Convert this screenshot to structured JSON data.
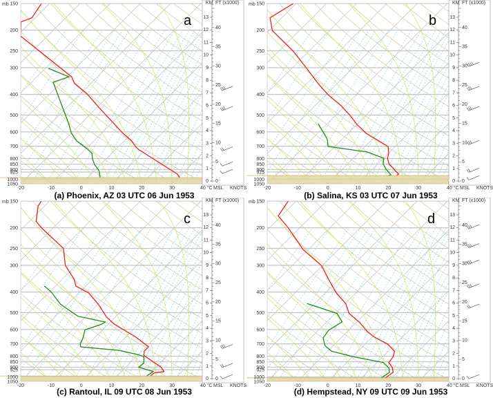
{
  "common": {
    "pressure_unit": "mb",
    "pressure_ticks": [
      150,
      200,
      250,
      300,
      400,
      500,
      600,
      700,
      800,
      850,
      900,
      925,
      1000,
      1050
    ],
    "temperature_ticks": [
      -20,
      -10,
      0,
      10,
      20,
      30,
      40
    ],
    "temperature_unit": "°C",
    "height_km_label": "KM",
    "height_ft_label": "FT (x1000)",
    "km_ticks": [
      0,
      1,
      2,
      3,
      4,
      5,
      6,
      7,
      8,
      9,
      10,
      11,
      12,
      13
    ],
    "ft_ticks": [
      0,
      5,
      10,
      15,
      20,
      25,
      30,
      35,
      40
    ],
    "msl_label": "MSL",
    "wind_unit": "KNOTS",
    "colors": {
      "temperature": "#e8201c",
      "dewpoint": "#1f8a1f",
      "isobar": "#c4c4c4",
      "isotherm": "#b4b4b4",
      "dry_adiabat": "#d9cfa6",
      "moist_adiabat": "#d6ea7c",
      "mixing_ratio": "#7fd8d8",
      "ground": "#e4d6a0"
    }
  },
  "chart_data": [
    {
      "type": "line",
      "subtype": "skew-T log-p",
      "letter": "a",
      "title": "(a) Phoenix, AZ 03 UTC 06 Jun 1953",
      "xlabel": "°C",
      "ylabel": "mb",
      "xlim": [
        -20,
        40
      ],
      "ylim": [
        1050,
        150
      ],
      "surface_mb": 982,
      "series": [
        {
          "color": "#e8201c",
          "points_p_T": [
            [
              150,
              -72.7
            ],
            [
              175,
              -71.1
            ],
            [
              183,
              -73.4
            ],
            [
              213,
              -68.9
            ],
            [
              331,
              -38.5
            ],
            [
              356,
              -35.3
            ],
            [
              401,
              -27.3
            ],
            [
              456,
              -20.0
            ],
            [
              609,
              -2.9
            ],
            [
              657,
              2.1
            ],
            [
              707,
              6.0
            ],
            [
              723,
              7.4
            ],
            [
              821,
              17.4
            ],
            [
              946,
              28.6
            ],
            [
              982,
              30.5
            ]
          ]
        },
        {
          "color": "#1f8a1f",
          "points_p_T": [
            [
              302,
              -49.0
            ],
            [
              331,
              -39.4
            ],
            [
              351,
              -42.8
            ],
            [
              553,
              -23.7
            ],
            [
              605,
              -20.2
            ],
            [
              661,
              -15.7
            ],
            [
              707,
              -10.9
            ],
            [
              723,
              -9.3
            ],
            [
              756,
              -6.5
            ],
            [
              803,
              -4.5
            ],
            [
              852,
              -2.0
            ],
            [
              911,
              1.5
            ],
            [
              982,
              4.2
            ]
          ]
        }
      ],
      "wind_barbs_km": [
        [
          7.3,
          25
        ],
        [
          5.7,
          25
        ],
        [
          2.5,
          15
        ],
        [
          1.3,
          10
        ],
        [
          0.7,
          10
        ]
      ]
    },
    {
      "type": "line",
      "subtype": "skew-T log-p",
      "letter": "b",
      "title": "(b) Salina, KS 03 UTC 07 Jun 1953",
      "xlabel": "°C",
      "ylabel": "mb",
      "xlim": [
        -20,
        40
      ],
      "ylim": [
        1050,
        150
      ],
      "surface_mb": 960,
      "series": [
        {
          "color": "#e8201c",
          "points_p_T": [
            [
              150,
              -70.9
            ],
            [
              175,
              -73.9
            ],
            [
              201,
              -68.9
            ],
            [
              251,
              -55.2
            ],
            [
              302,
              -45.1
            ],
            [
              359,
              -35.8
            ],
            [
              401,
              -29.4
            ],
            [
              452,
              -21.4
            ],
            [
              502,
              -15.2
            ],
            [
              553,
              -10.0
            ],
            [
              609,
              -4.0
            ],
            [
              702,
              7.6
            ],
            [
              756,
              10.1
            ],
            [
              797,
              11.3
            ],
            [
              846,
              13.6
            ],
            [
              946,
              20.2
            ],
            [
              960,
              20.0
            ]
          ]
        },
        {
          "color": "#1f8a1f",
          "points_p_T": [
            [
              549,
              -23.0
            ],
            [
              647,
              -15.0
            ],
            [
              702,
              -12.2
            ],
            [
              745,
              2.6
            ],
            [
              797,
              10.1
            ],
            [
              846,
              11.7
            ],
            [
              898,
              14.5
            ],
            [
              953,
              17.9
            ],
            [
              967,
              17.0
            ]
          ]
        }
      ],
      "wind_barbs_km": [
        [
          9.2,
          40
        ],
        [
          7.3,
          30
        ],
        [
          5.7,
          30
        ],
        [
          3.0,
          30
        ],
        [
          0.8,
          15
        ],
        [
          0.2,
          10
        ]
      ]
    },
    {
      "type": "line",
      "subtype": "skew-T log-p",
      "letter": "c",
      "title": "(c) Rantoul, IL 09 UTC 08 Jun 1953",
      "xlabel": "°C",
      "ylabel": "mb",
      "xlim": [
        -20,
        40
      ],
      "ylim": [
        1050,
        150
      ],
      "surface_mb": 990,
      "series": [
        {
          "color": "#e8201c",
          "points_p_T": [
            [
              150,
              -72.7
            ],
            [
              158,
              -72.2
            ],
            [
              187,
              -67.7
            ],
            [
              202,
              -63.3
            ],
            [
              250,
              -49.8
            ],
            [
              300,
              -43.6
            ],
            [
              350,
              -35.9
            ],
            [
              375,
              -33.3
            ],
            [
              404,
              -26.8
            ],
            [
              457,
              -19.8
            ],
            [
              524,
              -12.9
            ],
            [
              566,
              -8.0
            ],
            [
              649,
              3.2
            ],
            [
              722,
              10.8
            ],
            [
              756,
              10.8
            ],
            [
              792,
              12.0
            ],
            [
              901,
              21.7
            ],
            [
              944,
              24.1
            ],
            [
              958,
              21.3
            ],
            [
              988,
              21.1
            ]
          ]
        },
        {
          "color": "#1f8a1f",
          "points_p_T": [
            [
              375,
              -43.7
            ],
            [
              401,
              -39.3
            ],
            [
              457,
              -32.3
            ],
            [
              520,
              -22.6
            ],
            [
              553,
              -11.7
            ],
            [
              566,
              -12.1
            ],
            [
              602,
              -15.8
            ],
            [
              659,
              -13.7
            ],
            [
              701,
              -12.7
            ],
            [
              723,
              -11.6
            ],
            [
              751,
              2.1
            ],
            [
              786,
              9.9
            ],
            [
              804,
              12.5
            ],
            [
              861,
              14.6
            ],
            [
              901,
              14.3
            ],
            [
              944,
              20.6
            ],
            [
              966,
              20.2
            ],
            [
              996,
              19.7
            ]
          ]
        }
      ],
      "wind_barbs_km": [
        [
          2.5,
          30
        ],
        [
          1.0,
          15
        ],
        [
          0.1,
          10
        ]
      ]
    },
    {
      "type": "line",
      "subtype": "skew-T log-p",
      "letter": "d",
      "title": "(d) Hempstead, NY 09 UTC 09 Jun 1953",
      "xlabel": "°C",
      "ylabel": "mb",
      "xlim": [
        -20,
        40
      ],
      "ylim": [
        1050,
        150
      ],
      "surface_mb": 1010,
      "series": [
        {
          "color": "#e8201c",
          "points_p_T": [
            [
              150,
              -72.6
            ],
            [
              176,
              -71.0
            ],
            [
              200,
              -63.8
            ],
            [
              253,
              -51.7
            ],
            [
              301,
              -40.3
            ],
            [
              350,
              -33.3
            ],
            [
              405,
              -26.3
            ],
            [
              453,
              -19.8
            ],
            [
              504,
              -15.4
            ],
            [
              556,
              -8.9
            ],
            [
              614,
              -3.3
            ],
            [
              652,
              0.9
            ],
            [
              703,
              7.6
            ],
            [
              758,
              12.1
            ],
            [
              806,
              13.5
            ],
            [
              856,
              13.9
            ],
            [
              903,
              16.7
            ],
            [
              952,
              18.6
            ],
            [
              989,
              18.1
            ],
            [
              1012,
              17.9
            ]
          ]
        },
        {
          "color": "#1f8a1f",
          "points_p_T": [
            [
              453,
              -32.6
            ],
            [
              504,
              -19.4
            ],
            [
              552,
              -14.9
            ],
            [
              604,
              -16.6
            ],
            [
              657,
              -15.9
            ],
            [
              714,
              -12.7
            ],
            [
              758,
              -8.7
            ],
            [
              806,
              0.6
            ],
            [
              856,
              12.1
            ],
            [
              909,
              15.8
            ],
            [
              952,
              17.4
            ],
            [
              1012,
              16.5
            ]
          ]
        }
      ],
      "wind_barbs_km": [
        [
          12.0,
          30
        ],
        [
          10.5,
          30
        ],
        [
          9.2,
          30
        ],
        [
          7.3,
          25
        ],
        [
          5.7,
          20
        ],
        [
          0.1,
          5
        ]
      ]
    }
  ]
}
